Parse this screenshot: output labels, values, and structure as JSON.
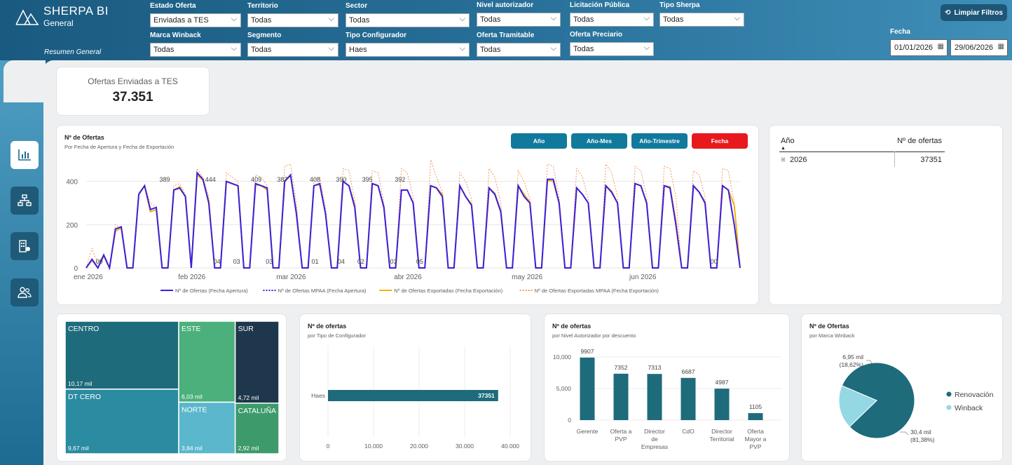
{
  "app": {
    "title": "SHERPA BI",
    "subtitle": "General",
    "page": "Resumen General"
  },
  "filters": [
    {
      "label": "Estado Oferta",
      "value": "Enviadas a TES"
    },
    {
      "label": "Territorio",
      "value": "Todas"
    },
    {
      "label": "Sector",
      "value": "Todas"
    },
    {
      "label": "Nivel autorizador",
      "value": "Todas"
    },
    {
      "label": "Licitación Pública",
      "value": "Todas"
    },
    {
      "label": "Tipo Sherpa",
      "value": "Todas"
    },
    {
      "label": "Marca Winback",
      "value": "Todas"
    },
    {
      "label": "Segmento",
      "value": "Todas"
    },
    {
      "label": "Tipo Configurador",
      "value": "Haes"
    },
    {
      "label": "Oferta Tramitable",
      "value": "Todas"
    },
    {
      "label": "Oferta Preciario",
      "value": "Todas"
    }
  ],
  "clear_filters": "Limpiar Filtros",
  "date_filter": {
    "label": "Fecha",
    "from": "01/01/2026",
    "to": "29/06/2026"
  },
  "nav": [
    {
      "icon": "bar-chart-icon"
    },
    {
      "icon": "org-chart-icon"
    },
    {
      "icon": "building-icon"
    },
    {
      "icon": "users-icon"
    }
  ],
  "kpi": {
    "label": "Ofertas Enviadas a TES",
    "value": "37.351"
  },
  "line_card": {
    "title": "Nº de Ofertas",
    "subtitle": "Por Fecha de Apertura y Fecha de Exportación",
    "buttons": [
      {
        "label": "Año",
        "color": "#117a9c"
      },
      {
        "label": "Año-Mes",
        "color": "#117a9c"
      },
      {
        "label": "Año-Trimestre",
        "color": "#117a9c"
      },
      {
        "label": "Fecha",
        "color": "#e8191c"
      }
    ]
  },
  "year_table": {
    "headers": [
      "Año",
      "Nº de ofertas"
    ],
    "rows": [
      {
        "year": "2026",
        "value": "37351"
      }
    ]
  },
  "colors": {
    "accent": "#1e6b7b",
    "apertura": "#3c1ee0",
    "mpaa_apertura": "#3c1ee0",
    "exportadas": "#f2b211",
    "mpaa_exportadas": "#f29b66",
    "treemap_dark": "#1e6b7b",
    "treemap_teal": "#2a8ba1",
    "treemap_green": "#4bb07c",
    "treemap_navy": "#1f374c",
    "treemap_cyan": "#5ab7cc",
    "treemap_green2": "#3d9a6b",
    "pie_main": "#1e6b7b",
    "pie_light": "#93d8e3"
  },
  "chart_data": [
    {
      "type": "line",
      "title": "Nº de Ofertas",
      "subtitle": "Por Fecha de Apertura y Fecha de Exportación",
      "x_ticks": [
        "ene 2026",
        "feb 2026",
        "mar 2026",
        "abr 2026",
        "may 2026",
        "jun 2026"
      ],
      "ylim": [
        0,
        480
      ],
      "y_ticks": [
        0,
        200,
        400
      ],
      "grid": true,
      "legend": "bottom",
      "series": [
        {
          "name": "Nº de Ofertas (Fecha Apertura)",
          "style": "solid",
          "color": "#3c1ee0",
          "values": [
            0,
            40,
            0,
            60,
            0,
            180,
            190,
            0,
            0,
            340,
            380,
            270,
            280,
            0,
            0,
            360,
            370,
            330,
            0,
            440,
            410,
            300,
            0,
            0,
            400,
            390,
            380,
            0,
            0,
            390,
            380,
            370,
            0,
            0,
            400,
            430,
            250,
            0,
            0,
            380,
            390,
            250,
            0,
            0,
            400,
            380,
            280,
            0,
            0,
            390,
            380,
            280,
            0,
            0,
            360,
            360,
            300,
            0,
            0,
            380,
            370,
            330,
            0,
            0,
            380,
            330,
            290,
            0,
            0,
            370,
            340,
            260,
            0,
            0,
            380,
            330,
            300,
            0,
            0,
            410,
            410,
            300,
            0,
            0,
            370,
            340,
            300,
            0,
            0,
            380,
            350,
            300,
            0,
            0,
            390,
            380,
            300,
            0,
            0,
            380,
            370,
            200,
            0,
            0,
            380,
            350,
            300,
            0,
            0,
            380,
            360,
            200,
            0
          ]
        },
        {
          "name": "Nº de Ofertas MPAA (Fecha Apertura)",
          "style": "dashed",
          "color": "#3c1ee0",
          "values": [
            0,
            40,
            0,
            60,
            0,
            180,
            190,
            0,
            0,
            340,
            380,
            270,
            280,
            0,
            0,
            360,
            370,
            330,
            0,
            440,
            410,
            300,
            0,
            0,
            400,
            390,
            380,
            0,
            0,
            390,
            380,
            370,
            0,
            0,
            400,
            430,
            250,
            0,
            0,
            380,
            390,
            250,
            0,
            0,
            400,
            380,
            280,
            0,
            0,
            390,
            380,
            280,
            0,
            0,
            360,
            360,
            300,
            0,
            0,
            380,
            370,
            330,
            0,
            0,
            380,
            330,
            290,
            0,
            0,
            370,
            340,
            260,
            0,
            0,
            380,
            330,
            300,
            0,
            0,
            410,
            410,
            300,
            0,
            0,
            370,
            340,
            300,
            0,
            0,
            380,
            350,
            300,
            0,
            0,
            390,
            380,
            300,
            0,
            0,
            380,
            370,
            200,
            0,
            0,
            380,
            350,
            300,
            0,
            0,
            380,
            360,
            200,
            0
          ]
        },
        {
          "name": "Nº de Ofertas Exportadas (Fecha Exportación)",
          "style": "solid",
          "color": "#f2b211",
          "values": [
            0,
            35,
            0,
            55,
            0,
            170,
            185,
            0,
            0,
            340,
            380,
            260,
            270,
            0,
            0,
            360,
            375,
            330,
            0,
            430,
            405,
            310,
            0,
            0,
            400,
            390,
            380,
            0,
            0,
            385,
            380,
            360,
            0,
            0,
            405,
            425,
            260,
            0,
            0,
            380,
            385,
            250,
            0,
            0,
            400,
            380,
            290,
            0,
            0,
            390,
            380,
            280,
            0,
            0,
            360,
            360,
            300,
            0,
            0,
            380,
            370,
            340,
            0,
            0,
            380,
            330,
            295,
            0,
            0,
            370,
            345,
            265,
            0,
            0,
            380,
            340,
            305,
            0,
            0,
            405,
            400,
            300,
            0,
            0,
            370,
            340,
            300,
            0,
            0,
            380,
            355,
            300,
            0,
            0,
            390,
            380,
            300,
            0,
            0,
            380,
            375,
            215,
            0,
            0,
            380,
            350,
            305,
            0,
            0,
            380,
            360,
            290,
            0
          ]
        },
        {
          "name": "Nº de Ofertas Exportadas MPAA (Fecha Exportación)",
          "style": "dashed",
          "color": "#f29b66",
          "values": [
            0,
            90,
            20,
            60,
            0,
            200,
            180,
            0,
            0,
            350,
            380,
            300,
            280,
            0,
            0,
            380,
            390,
            340,
            0,
            460,
            420,
            330,
            0,
            0,
            440,
            420,
            400,
            0,
            0,
            430,
            420,
            380,
            0,
            0,
            470,
            480,
            300,
            0,
            0,
            410,
            420,
            280,
            0,
            0,
            460,
            450,
            310,
            0,
            0,
            450,
            440,
            300,
            0,
            0,
            460,
            440,
            330,
            0,
            0,
            500,
            420,
            350,
            0,
            0,
            440,
            400,
            320,
            0,
            0,
            460,
            420,
            300,
            0,
            0,
            450,
            400,
            320,
            0,
            0,
            480,
            470,
            330,
            0,
            0,
            460,
            420,
            320,
            0,
            0,
            480,
            440,
            330,
            0,
            0,
            470,
            450,
            330,
            0,
            0,
            470,
            460,
            330,
            0,
            0,
            450,
            430,
            330,
            0,
            0,
            460,
            450,
            300,
            0
          ]
        }
      ],
      "data_labels": [
        "00",
        "389",
        "444",
        "04",
        "409",
        "03",
        "387",
        "03",
        "408",
        "01",
        "390",
        "04",
        "395",
        "02",
        "392",
        "03",
        "05",
        "00"
      ]
    },
    {
      "type": "treemap",
      "categories": [
        "CENTRO",
        "DT CERO",
        "ESTE",
        "NORTE",
        "SUR",
        "CATALUÑA"
      ],
      "values": [
        10.17,
        9.67,
        6.03,
        3.84,
        4.72,
        2.92
      ],
      "labels": [
        "10,17 mil",
        "9,67 mil",
        "6,03 mil",
        "3,84 mil",
        "4,72 mil",
        "2,92 mil"
      ]
    },
    {
      "type": "bar",
      "orientation": "horizontal",
      "title": "Nº de ofertas",
      "subtitle": "por Tipo de Configurador",
      "categories": [
        "Haes"
      ],
      "values": [
        37351
      ],
      "x_ticks": [
        "0",
        "10.000",
        "20.000",
        "30.000",
        "40.000"
      ],
      "xlim": [
        0,
        40000
      ]
    },
    {
      "type": "bar",
      "title": "Nº de ofertas",
      "subtitle": "por Nivel Autorizador por descuento",
      "categories": [
        "Gerente",
        "Oferta a PVP",
        "Director de Empresas",
        "CdO",
        "Director Territorial",
        "Oferta Mayor a PVP"
      ],
      "values": [
        9907,
        7352,
        7313,
        6687,
        4987,
        1105
      ],
      "y_ticks": [
        "0",
        "5,000",
        "10,000"
      ],
      "ylim": [
        0,
        11000
      ]
    },
    {
      "type": "pie",
      "title": "Nº de Ofertas",
      "subtitle": "por Marca Winback",
      "categories": [
        "Renovación",
        "Winback"
      ],
      "values": [
        30.4,
        6.95
      ],
      "labels": [
        "30,4 mil\n(81,38%)",
        "6,95 mil\n(18,62%)"
      ],
      "percent": [
        81.38,
        18.62
      ]
    }
  ]
}
